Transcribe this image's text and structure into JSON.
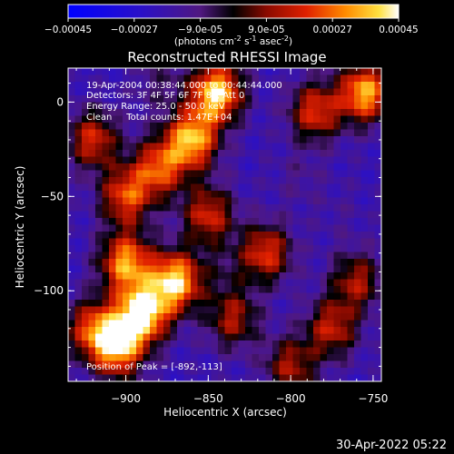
{
  "colorbar": {
    "ticks": [
      "-0.00045",
      "-0.00027",
      "-9.0e-05",
      "9.0e-05",
      "0.00027",
      "0.00045"
    ],
    "units_prefix": "(photons cm",
    "units_exp1": "-2",
    "units_mid": " s",
    "units_exp2": "-1",
    "units_mid2": " asec",
    "units_exp3": "-2",
    "units_suffix": ")",
    "min": -0.00045,
    "max": 0.00045
  },
  "chart_data": {
    "type": "heatmap",
    "title": "Reconstructed RHESSI Image",
    "xlabel": "Heliocentric X (arcsec)",
    "ylabel": "Heliocentric Y (arcsec)",
    "xlim": [
      -935,
      -745
    ],
    "ylim": [
      -148,
      18
    ],
    "xticks": [
      -900,
      -850,
      -800,
      -750
    ],
    "xtick_labels": [
      "−900",
      "−850",
      "−800",
      "−750"
    ],
    "yticks": [
      0,
      -50,
      -100
    ],
    "ytick_labels": [
      "0",
      "−50",
      "−100"
    ],
    "peak": [
      -892,
      -113
    ],
    "annotations": {
      "line1": "19-Apr-2004 00:38:44.000 to 00:44:44.000",
      "line2": "Detectors: 3F 4F 5F 6F 7F 8F, Att 0",
      "line3": "Energy Range: 25.0 - 50.0 keV",
      "line4": "Clean     Total counts: 1.47E+04",
      "peak_label": "Position of Peak = [-892,-113]"
    },
    "colormap": "rhessi-blue-purple-red-yellow",
    "hotspots": [
      {
        "x": -890,
        "y": -112,
        "value": 0.00045
      },
      {
        "x": -870,
        "y": -95,
        "value": 0.0004
      },
      {
        "x": -900,
        "y": -85,
        "value": 0.00032
      },
      {
        "x": -905,
        "y": -130,
        "value": 0.00035
      },
      {
        "x": -845,
        "y": 5,
        "value": 0.00042
      },
      {
        "x": -860,
        "y": -20,
        "value": 0.00036
      },
      {
        "x": -880,
        "y": -35,
        "value": 0.00022
      },
      {
        "x": -900,
        "y": -50,
        "value": 0.00022
      },
      {
        "x": -920,
        "y": -20,
        "value": 0.00018
      },
      {
        "x": -755,
        "y": 5,
        "value": 0.00035
      },
      {
        "x": -785,
        "y": -5,
        "value": 0.0002
      },
      {
        "x": -815,
        "y": -80,
        "value": 0.0002
      },
      {
        "x": -835,
        "y": -115,
        "value": 0.00012
      },
      {
        "x": -775,
        "y": -120,
        "value": 0.00015
      },
      {
        "x": -760,
        "y": -95,
        "value": 0.00012
      },
      {
        "x": -800,
        "y": -140,
        "value": 0.00012
      },
      {
        "x": -850,
        "y": -60,
        "value": 0.00018
      },
      {
        "x": -920,
        "y": -120,
        "value": 0.0002
      },
      {
        "x": -795,
        "y": -40,
        "value": -0.00012
      },
      {
        "x": -770,
        "y": -60,
        "value": -0.00015
      },
      {
        "x": -840,
        "y": -90,
        "value": -0.0001
      },
      {
        "x": -880,
        "y": 10,
        "value": -8e-05
      }
    ]
  },
  "footer": {
    "timestamp": "30-Apr-2022 05:22"
  }
}
